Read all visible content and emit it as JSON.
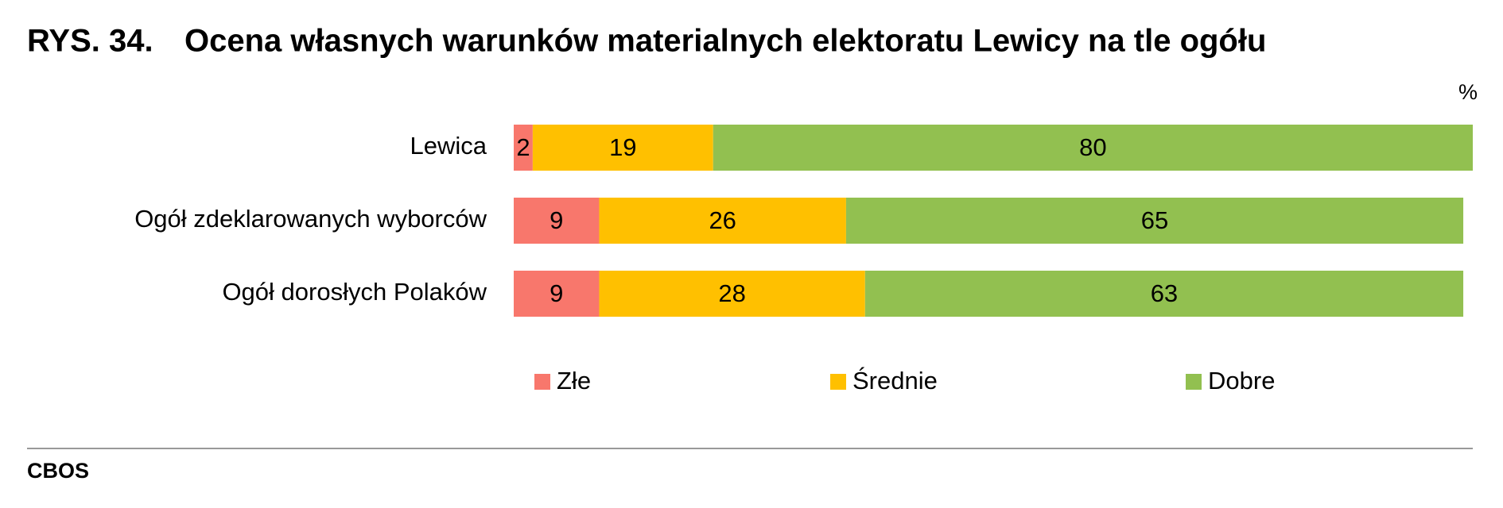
{
  "chart_data": {
    "type": "stacked-bar",
    "orientation": "horizontal",
    "figure_label": "RYS. 34.",
    "title": "Ocena własnych warunków materialnych elektoratu Lewicy na tle ogółu",
    "unit": "%",
    "categories": [
      "Lewica",
      "Ogół zdeklarowanych wyborców",
      "Ogół dorosłych Polaków"
    ],
    "series": [
      {
        "name": "Złe",
        "color": "#f8776c",
        "values": [
          2,
          9,
          9
        ]
      },
      {
        "name": "Średnie",
        "color": "#ffc000",
        "values": [
          19,
          26,
          28
        ]
      },
      {
        "name": "Dobre",
        "color": "#92c050",
        "values": [
          80,
          65,
          63
        ]
      }
    ],
    "source": "CBOS"
  }
}
